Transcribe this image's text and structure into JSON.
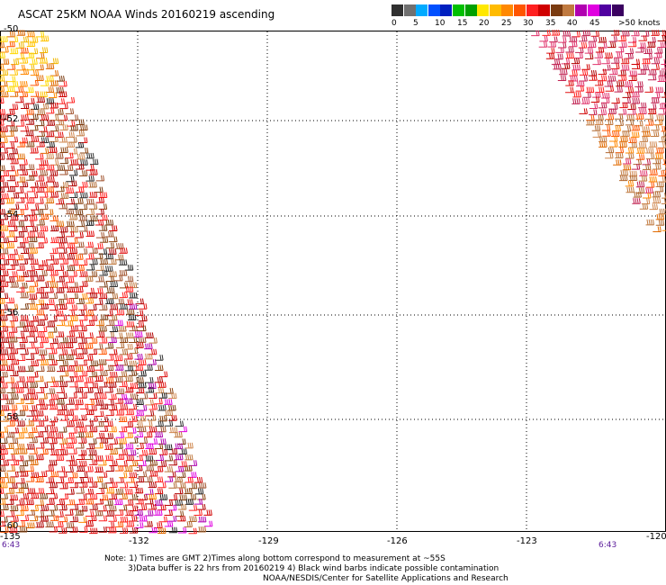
{
  "title": "ASCAT 25KM NOAA Winds 20160219 ascending",
  "colorbar": {
    "cells": [
      {
        "color": "#303030"
      },
      {
        "color": "#707070"
      },
      {
        "color": "#00aaff"
      },
      {
        "color": "#0050ff"
      },
      {
        "color": "#0020c0"
      },
      {
        "color": "#00c000"
      },
      {
        "color": "#00a000"
      },
      {
        "color": "#ffe800"
      },
      {
        "color": "#ffbb00"
      },
      {
        "color": "#ff8800"
      },
      {
        "color": "#ff5500"
      },
      {
        "color": "#ff2020"
      },
      {
        "color": "#d00000"
      },
      {
        "color": "#7a3b10"
      },
      {
        "color": "#c07a40"
      },
      {
        "color": "#b000b0"
      },
      {
        "color": "#e000e0"
      },
      {
        "color": "#5000a0"
      },
      {
        "color": "#3a0060"
      }
    ],
    "labels": [
      "0",
      "5",
      "10",
      "15",
      "20",
      "25",
      "30",
      "35",
      "40",
      "45",
      ">50 knots"
    ]
  },
  "axes": {
    "lon_labels": [
      "-135",
      "-132",
      "-129",
      "-126",
      "-123",
      "-120"
    ],
    "lat_labels": [
      "-50",
      "-52",
      "-54",
      "-56",
      "-58",
      "-60"
    ]
  },
  "times": [
    "6:43",
    "6:43"
  ],
  "notes": [
    "Note: 1) Times are GMT 2)Times along bottom correspond to measurement at ~55S",
    "3)Data buffer is 22 hrs from 20160219 4) Black wind barbs indicate possible contamination",
    "NOAA/NESDIS/Center for Satellite Applications and Research"
  ]
}
